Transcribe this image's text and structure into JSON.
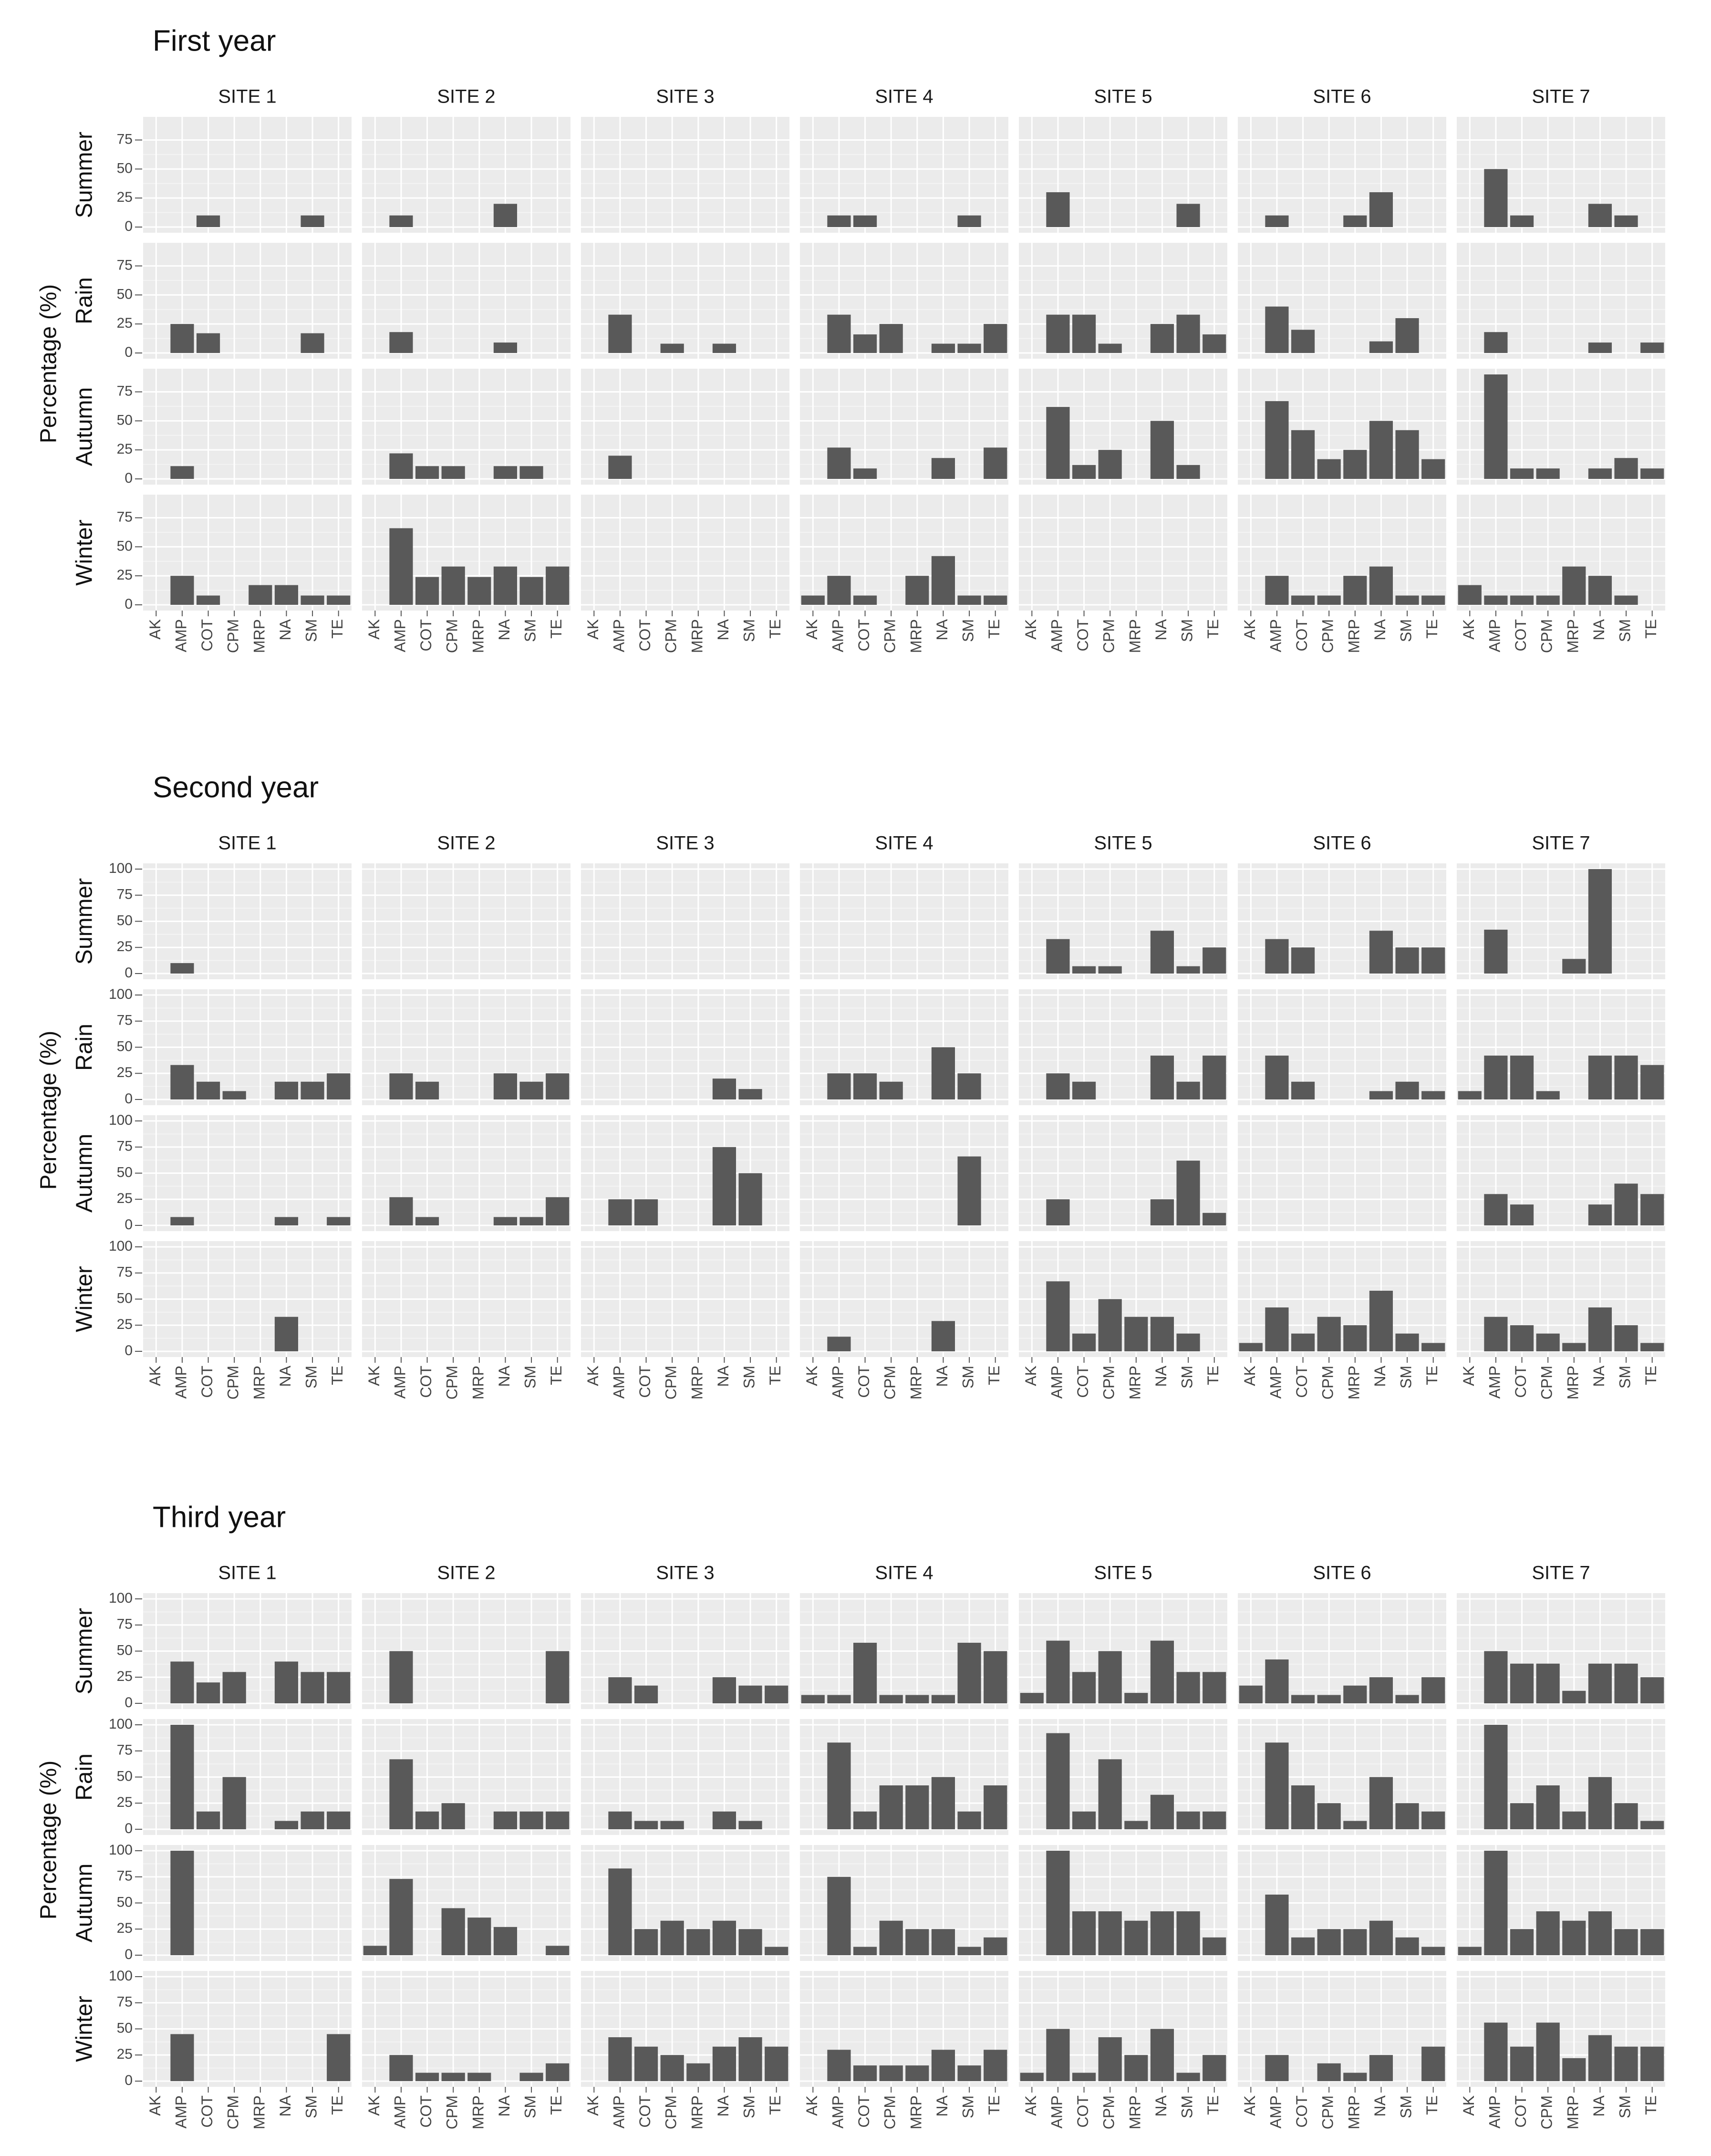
{
  "chart_data": [
    {
      "type": "bar",
      "title": "First year",
      "ylabel": "Percentage (%)",
      "ylim": [
        0,
        90
      ],
      "yticks": [
        0,
        25,
        50,
        75
      ],
      "grid": true,
      "sites": [
        "SITE 1",
        "SITE 2",
        "SITE 3",
        "SITE 4",
        "SITE 5",
        "SITE 6",
        "SITE 7"
      ],
      "seasons": [
        "Summer",
        "Rain",
        "Autumn",
        "Winter"
      ],
      "categories": [
        "AK",
        "AMP",
        "COT",
        "CPM",
        "MRP",
        "NA",
        "SM",
        "TE"
      ],
      "values": {
        "Summer": [
          [
            0,
            0,
            10,
            0,
            0,
            0,
            10,
            0
          ],
          [
            0,
            10,
            0,
            0,
            0,
            20,
            0,
            0
          ],
          [
            0,
            0,
            0,
            0,
            0,
            0,
            0,
            0
          ],
          [
            0,
            10,
            10,
            0,
            0,
            0,
            10,
            0
          ],
          [
            0,
            30,
            0,
            0,
            0,
            0,
            20,
            0
          ],
          [
            0,
            10,
            0,
            0,
            10,
            30,
            0,
            0
          ],
          [
            0,
            50,
            10,
            0,
            0,
            20,
            10,
            0
          ]
        ],
        "Rain": [
          [
            0,
            25,
            17,
            0,
            0,
            0,
            17,
            0
          ],
          [
            0,
            18,
            0,
            0,
            0,
            9,
            0,
            0
          ],
          [
            0,
            33,
            0,
            8,
            0,
            8,
            0,
            0
          ],
          [
            0,
            33,
            16,
            25,
            0,
            8,
            8,
            25
          ],
          [
            0,
            33,
            33,
            8,
            0,
            25,
            33,
            16
          ],
          [
            0,
            40,
            20,
            0,
            0,
            10,
            30,
            0
          ],
          [
            0,
            18,
            0,
            0,
            0,
            9,
            0,
            9
          ]
        ],
        "Autumn": [
          [
            0,
            11,
            0,
            0,
            0,
            0,
            0,
            0
          ],
          [
            0,
            22,
            11,
            11,
            0,
            11,
            11,
            0
          ],
          [
            0,
            20,
            0,
            0,
            0,
            0,
            0,
            0
          ],
          [
            0,
            27,
            9,
            0,
            0,
            18,
            0,
            27
          ],
          [
            0,
            62,
            12,
            25,
            0,
            50,
            12,
            0
          ],
          [
            0,
            67,
            42,
            17,
            25,
            50,
            42,
            17
          ],
          [
            0,
            90,
            9,
            9,
            0,
            9,
            18,
            9
          ]
        ],
        "Winter": [
          [
            0,
            25,
            8,
            0,
            17,
            17,
            8,
            8
          ],
          [
            0,
            66,
            24,
            33,
            24,
            33,
            24,
            33
          ],
          [
            0,
            0,
            0,
            0,
            0,
            0,
            0,
            0
          ],
          [
            8,
            25,
            8,
            0,
            25,
            42,
            8,
            8
          ],
          [
            0,
            0,
            0,
            0,
            0,
            0,
            0,
            0
          ],
          [
            0,
            25,
            8,
            8,
            25,
            33,
            8,
            8
          ],
          [
            17,
            8,
            8,
            8,
            33,
            25,
            8,
            0
          ]
        ]
      }
    },
    {
      "type": "bar",
      "title": "Second year",
      "ylabel": "Percentage (%)",
      "ylim": [
        0,
        100
      ],
      "yticks": [
        0,
        25,
        50,
        75,
        100
      ],
      "grid": true,
      "sites": [
        "SITE 1",
        "SITE 2",
        "SITE 3",
        "SITE 4",
        "SITE 5",
        "SITE 6",
        "SITE 7"
      ],
      "seasons": [
        "Summer",
        "Rain",
        "Autumn",
        "Winter"
      ],
      "categories": [
        "AK",
        "AMP",
        "COT",
        "CPM",
        "MRP",
        "NA",
        "SM",
        "TE"
      ],
      "values": {
        "Summer": [
          [
            0,
            10,
            0,
            0,
            0,
            0,
            0,
            0
          ],
          [
            0,
            0,
            0,
            0,
            0,
            0,
            0,
            0
          ],
          [
            0,
            0,
            0,
            0,
            0,
            0,
            0,
            0
          ],
          [
            0,
            0,
            0,
            0,
            0,
            0,
            0,
            0
          ],
          [
            0,
            33,
            7,
            7,
            0,
            41,
            7,
            25
          ],
          [
            0,
            33,
            25,
            0,
            0,
            41,
            25,
            25
          ],
          [
            0,
            42,
            0,
            0,
            14,
            100,
            0,
            0
          ]
        ],
        "Rain": [
          [
            0,
            33,
            17,
            8,
            0,
            17,
            17,
            25
          ],
          [
            0,
            25,
            17,
            0,
            0,
            25,
            17,
            25
          ],
          [
            0,
            0,
            0,
            0,
            0,
            20,
            10,
            0
          ],
          [
            0,
            25,
            25,
            17,
            0,
            50,
            25,
            0
          ],
          [
            0,
            25,
            17,
            0,
            0,
            42,
            17,
            42
          ],
          [
            0,
            42,
            17,
            0,
            0,
            8,
            17,
            8
          ],
          [
            8,
            42,
            42,
            8,
            0,
            42,
            42,
            33
          ]
        ],
        "Autumn": [
          [
            0,
            8,
            0,
            0,
            0,
            8,
            0,
            8
          ],
          [
            0,
            27,
            8,
            0,
            0,
            8,
            8,
            27
          ],
          [
            0,
            25,
            25,
            0,
            0,
            75,
            50,
            0
          ],
          [
            0,
            0,
            0,
            0,
            0,
            0,
            66,
            0
          ],
          [
            0,
            25,
            0,
            0,
            0,
            25,
            62,
            12
          ],
          [
            0,
            0,
            0,
            0,
            0,
            0,
            0,
            0
          ],
          [
            0,
            30,
            20,
            0,
            0,
            20,
            40,
            30
          ]
        ],
        "Winter": [
          [
            0,
            0,
            0,
            0,
            0,
            33,
            0,
            0
          ],
          [
            0,
            0,
            0,
            0,
            0,
            0,
            0,
            0
          ],
          [
            0,
            0,
            0,
            0,
            0,
            0,
            0,
            0
          ],
          [
            0,
            14,
            0,
            0,
            0,
            29,
            0,
            0
          ],
          [
            0,
            67,
            17,
            50,
            33,
            33,
            17,
            0
          ],
          [
            8,
            42,
            17,
            33,
            25,
            58,
            17,
            8
          ],
          [
            0,
            33,
            25,
            17,
            8,
            42,
            25,
            8
          ]
        ]
      }
    },
    {
      "type": "bar",
      "title": "Third year",
      "ylabel": "Percentage (%)",
      "ylim": [
        0,
        100
      ],
      "yticks": [
        0,
        25,
        50,
        75,
        100
      ],
      "grid": true,
      "sites": [
        "SITE 1",
        "SITE 2",
        "SITE 3",
        "SITE 4",
        "SITE 5",
        "SITE 6",
        "SITE 7"
      ],
      "seasons": [
        "Summer",
        "Rain",
        "Autumn",
        "Winter"
      ],
      "categories": [
        "AK",
        "AMP",
        "COT",
        "CPM",
        "MRP",
        "NA",
        "SM",
        "TE"
      ],
      "values": {
        "Summer": [
          [
            0,
            40,
            20,
            30,
            0,
            40,
            30,
            30
          ],
          [
            0,
            50,
            0,
            0,
            0,
            0,
            0,
            50
          ],
          [
            0,
            25,
            17,
            0,
            0,
            25,
            17,
            17
          ],
          [
            8,
            8,
            58,
            8,
            8,
            8,
            58,
            50
          ],
          [
            10,
            60,
            30,
            50,
            10,
            60,
            30,
            30
          ],
          [
            17,
            42,
            8,
            8,
            17,
            25,
            8,
            25
          ],
          [
            0,
            50,
            38,
            38,
            12,
            38,
            38,
            25
          ]
        ],
        "Rain": [
          [
            0,
            100,
            17,
            50,
            0,
            8,
            17,
            17
          ],
          [
            0,
            67,
            17,
            25,
            0,
            17,
            17,
            17
          ],
          [
            0,
            17,
            8,
            8,
            0,
            17,
            8,
            0
          ],
          [
            0,
            83,
            17,
            42,
            42,
            50,
            17,
            42
          ],
          [
            0,
            92,
            17,
            67,
            8,
            33,
            17,
            17
          ],
          [
            0,
            83,
            42,
            25,
            8,
            50,
            25,
            17
          ],
          [
            0,
            100,
            25,
            42,
            17,
            50,
            25,
            8
          ]
        ],
        "Autumn": [
          [
            0,
            100,
            0,
            0,
            0,
            0,
            0,
            0
          ],
          [
            9,
            73,
            0,
            45,
            36,
            27,
            0,
            9
          ],
          [
            0,
            83,
            25,
            33,
            25,
            33,
            25,
            8
          ],
          [
            0,
            75,
            8,
            33,
            25,
            25,
            8,
            17
          ],
          [
            0,
            100,
            42,
            42,
            33,
            42,
            42,
            17
          ],
          [
            0,
            58,
            17,
            25,
            25,
            33,
            17,
            8
          ],
          [
            8,
            100,
            25,
            42,
            33,
            42,
            25,
            25
          ]
        ],
        "Winter": [
          [
            0,
            45,
            0,
            0,
            0,
            0,
            0,
            45
          ],
          [
            0,
            25,
            8,
            8,
            8,
            0,
            8,
            17
          ],
          [
            0,
            42,
            33,
            25,
            17,
            33,
            42,
            33
          ],
          [
            0,
            30,
            15,
            15,
            15,
            30,
            15,
            30
          ],
          [
            8,
            50,
            8,
            42,
            25,
            50,
            8,
            25
          ],
          [
            0,
            25,
            0,
            17,
            8,
            25,
            0,
            33
          ],
          [
            0,
            56,
            33,
            56,
            22,
            44,
            33,
            33
          ]
        ]
      }
    }
  ],
  "colors": {
    "panel_background": "#ebebeb",
    "grid_major": "#ffffff",
    "grid_minor": "#f4f4f4",
    "bar_fill": "#595959",
    "strip_background": "#ffffff",
    "axis_text": "#4d4d4d"
  }
}
